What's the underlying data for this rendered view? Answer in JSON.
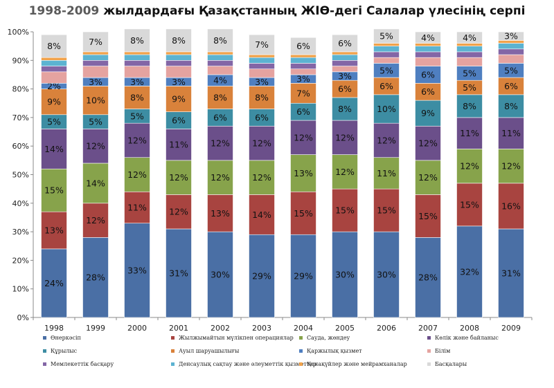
{
  "chart_data": {
    "type": "bar",
    "stacked": true,
    "percent": true,
    "title_year": "1998-2009",
    "title_rest": "жылдардағы Қазақстанның ЖІӨ-дегі Салалар үлесінің серпі",
    "categories": [
      "1998",
      "1999",
      "2000",
      "2001",
      "2002",
      "2003",
      "2004",
      "2005",
      "2006",
      "2007",
      "2008",
      "2009"
    ],
    "ylim": [
      0,
      100
    ],
    "yticks": [
      "0%",
      "10%",
      "20%",
      "30%",
      "40%",
      "50%",
      "60%",
      "70%",
      "80%",
      "90%",
      "100%"
    ],
    "grid": false,
    "legend_position": "bottom",
    "series": [
      {
        "name": "Өнеркәсіп",
        "color": "#4a6fa5",
        "values": [
          24,
          28,
          33,
          31,
          30,
          29,
          29,
          30,
          30,
          28,
          32,
          31
        ],
        "labels": [
          "24%",
          "28%",
          "33%",
          "31%",
          "30%",
          "29%",
          "29%",
          "30%",
          "30%",
          "28%",
          "32%",
          "31%"
        ]
      },
      {
        "name": "Жылжымайтын мүлікпен операциялар",
        "color": "#a84440",
        "values": [
          13,
          12,
          11,
          12,
          13,
          14,
          15,
          15,
          15,
          15,
          15,
          16
        ],
        "labels": [
          "13%",
          "12%",
          "11%",
          "12%",
          "13%",
          "14%",
          "15%",
          "15%",
          "15%",
          "15%",
          "15%",
          "16%"
        ]
      },
      {
        "name": "Сауда, жөндеу",
        "color": "#87a34b",
        "values": [
          15,
          14,
          12,
          12,
          12,
          12,
          13,
          12,
          11,
          12,
          12,
          12
        ],
        "labels": [
          "15%",
          "14%",
          "12%",
          "12%",
          "12%",
          "12%",
          "13%",
          "12%",
          "11%",
          "12%",
          "12%",
          "12%"
        ]
      },
      {
        "name": "Көлік және байланыс",
        "color": "#6b4f8a",
        "values": [
          14,
          12,
          12,
          11,
          12,
          12,
          12,
          12,
          12,
          12,
          11,
          11
        ],
        "labels": [
          "14%",
          "12%",
          "12%",
          "11%",
          "12%",
          "12%",
          "12%",
          "12%",
          "12%",
          "12%",
          "11%",
          "11%"
        ]
      },
      {
        "name": "Құрылыс",
        "color": "#3d8da3",
        "values": [
          5,
          5,
          5,
          6,
          6,
          6,
          6,
          8,
          10,
          9,
          8,
          8
        ],
        "labels": [
          "5%",
          "5%",
          "5%",
          "6%",
          "6%",
          "6%",
          "6%",
          "8%",
          "10%",
          "9%",
          "8%",
          "8%"
        ]
      },
      {
        "name": "Ауыл шаруашылығы",
        "color": "#d9823b",
        "values": [
          9,
          10,
          8,
          9,
          8,
          8,
          7,
          6,
          6,
          6,
          5,
          6
        ],
        "labels": [
          "9%",
          "10%",
          "8%",
          "9%",
          "8%",
          "8%",
          "7%",
          "6%",
          "6%",
          "6%",
          "5%",
          "6%"
        ]
      },
      {
        "name": "Қаржылық қызмет",
        "color": "#4f7fc0",
        "values": [
          2,
          3,
          3,
          3,
          4,
          3,
          3,
          3,
          5,
          6,
          5,
          5
        ],
        "labels": [
          "2%",
          "3%",
          "3%",
          "3%",
          "4%",
          "3%",
          "3%",
          "3%",
          "5%",
          "6%",
          "5%",
          "5%"
        ]
      },
      {
        "name": "Білім",
        "color": "#e5a3a0",
        "values": [
          4,
          4,
          4,
          4,
          3,
          3,
          2,
          2,
          2,
          3,
          3,
          3
        ],
        "labels": [
          "",
          "",
          "",
          "",
          "",
          "",
          "",
          "",
          "",
          "",
          "",
          ""
        ]
      },
      {
        "name": "Мемлекеттік басқару",
        "color": "#8366a6",
        "values": [
          2,
          2,
          2,
          2,
          2,
          2,
          2,
          2,
          2,
          2,
          2,
          2
        ],
        "labels": [
          "",
          "",
          "",
          "",
          "",
          "",
          "",
          "",
          "",
          "",
          "",
          ""
        ]
      },
      {
        "name": "Денсаулық сақтау және әлеуметтік қызметтер",
        "color": "#5cb3d1",
        "values": [
          2,
          2,
          2,
          2,
          2,
          2,
          2,
          2,
          2,
          2,
          2,
          2
        ],
        "labels": [
          "",
          "",
          "",
          "",
          "",
          "",
          "",
          "",
          "",
          "",
          "",
          ""
        ]
      },
      {
        "name": "Қонақүйлер және мейрамханалар",
        "color": "#f0a24b",
        "values": [
          1,
          1,
          1,
          1,
          1,
          1,
          1,
          1,
          1,
          1,
          1,
          1
        ],
        "labels": [
          "",
          "",
          "",
          "",
          "",
          "",
          "",
          "",
          "",
          "",
          "",
          ""
        ]
      },
      {
        "name": "Басқалары",
        "color": "#d9d9d9",
        "values": [
          8,
          7,
          8,
          8,
          8,
          7,
          6,
          6,
          5,
          4,
          4,
          3
        ],
        "labels": [
          "8%",
          "7%",
          "8%",
          "8%",
          "8%",
          "7%",
          "6%",
          "6%",
          "5%",
          "4%",
          "4%",
          "3%"
        ]
      }
    ]
  }
}
